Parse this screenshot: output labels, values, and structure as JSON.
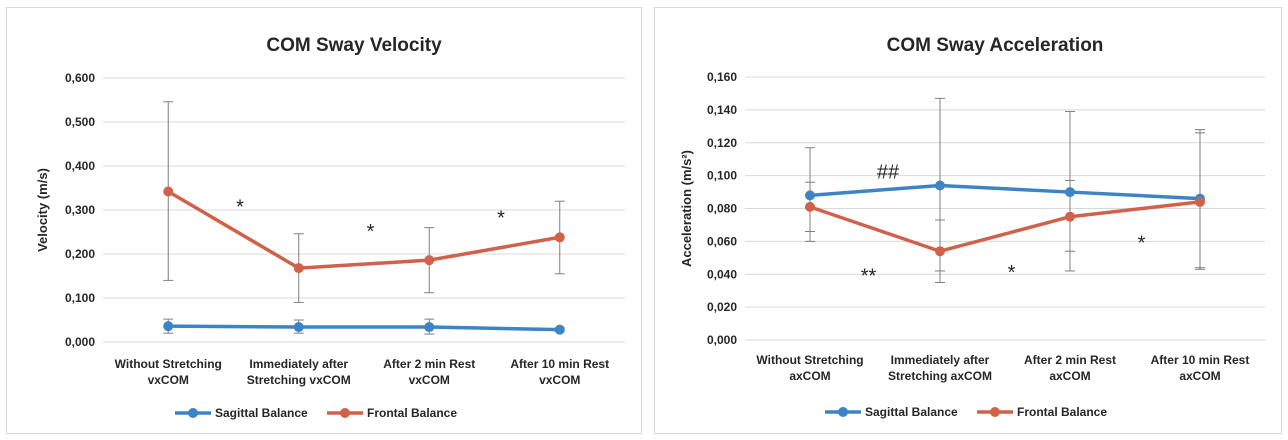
{
  "chart_data": [
    {
      "type": "line",
      "title": "COM Sway Velocity",
      "ylabel": "Velocity (m/s)",
      "ylim": [
        0,
        0.6
      ],
      "yticks": [
        "0,000",
        "0,100",
        "0,200",
        "0,300",
        "0,400",
        "0,500",
        "0,600"
      ],
      "categories": [
        [
          "Without Stretching",
          "vxCOM"
        ],
        [
          "Immediately after",
          "Stretching vxCOM"
        ],
        [
          "After 2 min Rest",
          "vxCOM"
        ],
        [
          "After 10 min Rest",
          "vxCOM"
        ]
      ],
      "series": [
        {
          "name": "Sagittal Balance",
          "color": "#3c84c6",
          "values": [
            0.036,
            0.034,
            0.034,
            0.028
          ],
          "err_low": [
            0.02,
            0.02,
            0.018,
            0.024
          ],
          "err_high": [
            0.052,
            0.05,
            0.052,
            0.032
          ]
        },
        {
          "name": "Frontal Balance",
          "color": "#d0614a",
          "values": [
            0.342,
            0.168,
            0.186,
            0.238
          ],
          "err_low": [
            0.14,
            0.09,
            0.112,
            0.155
          ],
          "err_high": [
            0.546,
            0.246,
            0.26,
            0.32
          ]
        }
      ],
      "annotations": [
        {
          "text": "*",
          "x": 0.55,
          "y": 0.31
        },
        {
          "text": "*",
          "x": 1.55,
          "y": 0.255
        },
        {
          "text": "*",
          "x": 2.55,
          "y": 0.285
        }
      ],
      "legend": "bottom",
      "grid": true
    },
    {
      "type": "line",
      "title": "COM Sway Acceleration",
      "ylabel": "Acceleration (m/s²)",
      "ylim": [
        0,
        0.16
      ],
      "yticks": [
        "0,000",
        "0,020",
        "0,040",
        "0,060",
        "0,080",
        "0,100",
        "0,120",
        "0,140",
        "0,160"
      ],
      "categories": [
        [
          "Without Stretching",
          "axCOM"
        ],
        [
          "Immediately after",
          "Stretching axCOM"
        ],
        [
          "After 2 min Rest",
          "axCOM"
        ],
        [
          "After 10 min Rest",
          "axCOM"
        ]
      ],
      "series": [
        {
          "name": "Sagittal Balance",
          "color": "#3c84c6",
          "values": [
            0.088,
            0.094,
            0.09,
            0.086
          ],
          "err_low": [
            0.06,
            0.042,
            0.042,
            0.044
          ],
          "err_high": [
            0.117,
            0.147,
            0.139,
            0.128
          ]
        },
        {
          "name": "Frontal Balance",
          "color": "#d0614a",
          "values": [
            0.081,
            0.054,
            0.075,
            0.084
          ],
          "err_low": [
            0.066,
            0.035,
            0.054,
            0.043
          ],
          "err_high": [
            0.096,
            0.073,
            0.097,
            0.126
          ]
        }
      ],
      "annotations": [
        {
          "text": "##",
          "x": 0.6,
          "y": 0.103
        },
        {
          "text": "**",
          "x": 0.45,
          "y": 0.04
        },
        {
          "text": "*",
          "x": 1.55,
          "y": 0.042
        },
        {
          "text": "*",
          "x": 2.55,
          "y": 0.06
        }
      ],
      "legend": "bottom",
      "grid": true
    }
  ]
}
